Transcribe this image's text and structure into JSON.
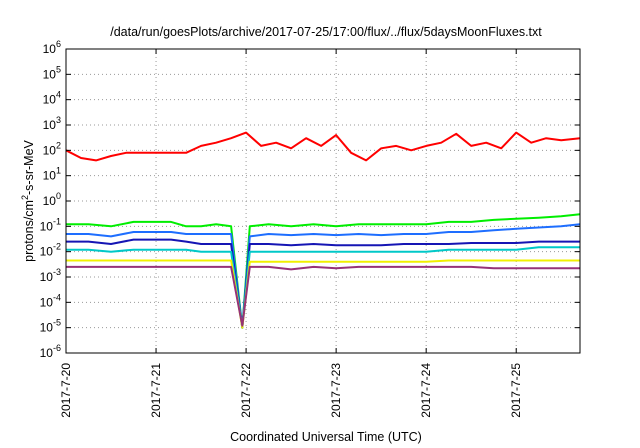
{
  "chart_data": {
    "type": "line",
    "title": "/data/run/goesPlots/archive/2017-07-25/17:00/flux/../flux/5daysMoonFluxes.txt",
    "xlabel": "Coordinated Universal Time (UTC)",
    "ylabel": {
      "base": "protons/cm",
      "sup": "2",
      "rest": "-s-sr-MeV"
    },
    "y_scale": "log",
    "ylim": [
      1e-06,
      1000000.0
    ],
    "y_ticks": [
      {
        "value": 1000000.0,
        "base": "10",
        "exp": "6"
      },
      {
        "value": 100000.0,
        "base": "10",
        "exp": "5"
      },
      {
        "value": 10000.0,
        "base": "10",
        "exp": "4"
      },
      {
        "value": 1000.0,
        "base": "10",
        "exp": "3"
      },
      {
        "value": 100.0,
        "base": "10",
        "exp": "2"
      },
      {
        "value": 10.0,
        "base": "10",
        "exp": "1"
      },
      {
        "value": 1.0,
        "base": "10",
        "exp": "0"
      },
      {
        "value": 0.1,
        "base": "10",
        "exp": "-1"
      },
      {
        "value": 0.01,
        "base": "10",
        "exp": "-2"
      },
      {
        "value": 0.001,
        "base": "10",
        "exp": "-3"
      },
      {
        "value": 0.0001,
        "base": "10",
        "exp": "-4"
      },
      {
        "value": 1e-05,
        "base": "10",
        "exp": "-5"
      },
      {
        "value": 1e-06,
        "base": "10",
        "exp": "-6"
      }
    ],
    "xlim": [
      "2017-07-20",
      "2017-07-25T17:00"
    ],
    "x_ticks": [
      "2017-7-20",
      "2017-7-21",
      "2017-7-22",
      "2017-7-23",
      "2017-7-24",
      "2017-7-25"
    ],
    "grid": "dotted",
    "series": [
      {
        "color": "#ff0000",
        "x": [
          "2017-07-20T00:00",
          "2017-07-20T04:00",
          "2017-07-20T08:00",
          "2017-07-20T12:00",
          "2017-07-20T16:00",
          "2017-07-21T00:00",
          "2017-07-21T04:00",
          "2017-07-21T08:00",
          "2017-07-21T12:00",
          "2017-07-21T16:00",
          "2017-07-21T20:00",
          "2017-07-22T00:00",
          "2017-07-22T04:00",
          "2017-07-22T08:00",
          "2017-07-22T12:00",
          "2017-07-22T16:00",
          "2017-07-22T20:00",
          "2017-07-23T00:00",
          "2017-07-23T04:00",
          "2017-07-23T08:00",
          "2017-07-23T12:00",
          "2017-07-23T16:00",
          "2017-07-23T20:00",
          "2017-07-24T00:00",
          "2017-07-24T04:00",
          "2017-07-24T08:00",
          "2017-07-24T12:00",
          "2017-07-24T16:00",
          "2017-07-24T20:00",
          "2017-07-25T00:00",
          "2017-07-25T04:00",
          "2017-07-25T08:00",
          "2017-07-25T12:00",
          "2017-07-25T17:00"
        ],
        "y": [
          100,
          50,
          40,
          60,
          80,
          80,
          80,
          80,
          150,
          200,
          300,
          500,
          150,
          200,
          120,
          300,
          150,
          400,
          80,
          40,
          120,
          150,
          100,
          150,
          200,
          450,
          150,
          200,
          120,
          500,
          200,
          300,
          250,
          300
        ]
      },
      {
        "color": "#00ee00",
        "x": [
          "2017-07-20T00:00",
          "2017-07-20T06:00",
          "2017-07-20T12:00",
          "2017-07-20T18:00",
          "2017-07-21T00:00",
          "2017-07-21T04:00",
          "2017-07-21T08:00",
          "2017-07-21T12:00",
          "2017-07-21T16:00",
          "2017-07-21T20:00",
          "2017-07-21T23:00",
          "2017-07-22T01:00",
          "2017-07-22T06:00",
          "2017-07-22T12:00",
          "2017-07-22T18:00",
          "2017-07-23T00:00",
          "2017-07-23T06:00",
          "2017-07-23T12:00",
          "2017-07-23T18:00",
          "2017-07-24T00:00",
          "2017-07-24T06:00",
          "2017-07-24T12:00",
          "2017-07-24T18:00",
          "2017-07-25T00:00",
          "2017-07-25T06:00",
          "2017-07-25T12:00",
          "2017-07-25T17:00"
        ],
        "y": [
          0.12,
          0.12,
          0.1,
          0.15,
          0.15,
          0.15,
          0.1,
          0.1,
          0.12,
          0.1,
          1e-05,
          0.1,
          0.12,
          0.1,
          0.12,
          0.1,
          0.12,
          0.12,
          0.12,
          0.12,
          0.15,
          0.15,
          0.18,
          0.2,
          0.22,
          0.25,
          0.3
        ]
      },
      {
        "color": "#1e6eff",
        "x": [
          "2017-07-20T00:00",
          "2017-07-20T06:00",
          "2017-07-20T12:00",
          "2017-07-20T18:00",
          "2017-07-21T00:00",
          "2017-07-21T04:00",
          "2017-07-21T08:00",
          "2017-07-21T12:00",
          "2017-07-21T16:00",
          "2017-07-21T20:00",
          "2017-07-21T23:00",
          "2017-07-22T01:00",
          "2017-07-22T06:00",
          "2017-07-22T12:00",
          "2017-07-22T18:00",
          "2017-07-23T00:00",
          "2017-07-23T06:00",
          "2017-07-23T12:00",
          "2017-07-23T18:00",
          "2017-07-24T00:00",
          "2017-07-24T06:00",
          "2017-07-24T12:00",
          "2017-07-24T18:00",
          "2017-07-25T00:00",
          "2017-07-25T06:00",
          "2017-07-25T12:00",
          "2017-07-25T17:00"
        ],
        "y": [
          0.05,
          0.05,
          0.04,
          0.06,
          0.06,
          0.06,
          0.05,
          0.05,
          0.05,
          0.05,
          1e-05,
          0.04,
          0.05,
          0.045,
          0.05,
          0.045,
          0.05,
          0.045,
          0.05,
          0.05,
          0.06,
          0.06,
          0.07,
          0.08,
          0.09,
          0.1,
          0.12
        ]
      },
      {
        "color": "#1515b4",
        "x": [
          "2017-07-20T00:00",
          "2017-07-20T06:00",
          "2017-07-20T12:00",
          "2017-07-20T18:00",
          "2017-07-21T00:00",
          "2017-07-21T04:00",
          "2017-07-21T08:00",
          "2017-07-21T12:00",
          "2017-07-21T16:00",
          "2017-07-21T20:00",
          "2017-07-21T23:00",
          "2017-07-22T01:00",
          "2017-07-22T06:00",
          "2017-07-22T12:00",
          "2017-07-22T18:00",
          "2017-07-23T00:00",
          "2017-07-23T06:00",
          "2017-07-23T12:00",
          "2017-07-23T18:00",
          "2017-07-24T00:00",
          "2017-07-24T06:00",
          "2017-07-24T12:00",
          "2017-07-24T18:00",
          "2017-07-25T00:00",
          "2017-07-25T06:00",
          "2017-07-25T12:00",
          "2017-07-25T17:00"
        ],
        "y": [
          0.025,
          0.025,
          0.02,
          0.03,
          0.03,
          0.03,
          0.025,
          0.02,
          0.02,
          0.02,
          1e-05,
          0.02,
          0.02,
          0.018,
          0.02,
          0.018,
          0.018,
          0.018,
          0.02,
          0.02,
          0.02,
          0.022,
          0.022,
          0.022,
          0.025,
          0.025,
          0.025
        ]
      },
      {
        "color": "#00c8c8",
        "x": [
          "2017-07-20T00:00",
          "2017-07-20T06:00",
          "2017-07-20T12:00",
          "2017-07-20T18:00",
          "2017-07-21T00:00",
          "2017-07-21T04:00",
          "2017-07-21T08:00",
          "2017-07-21T12:00",
          "2017-07-21T16:00",
          "2017-07-21T20:00",
          "2017-07-21T23:00",
          "2017-07-22T01:00",
          "2017-07-22T06:00",
          "2017-07-22T12:00",
          "2017-07-22T18:00",
          "2017-07-23T00:00",
          "2017-07-23T06:00",
          "2017-07-23T12:00",
          "2017-07-23T18:00",
          "2017-07-24T00:00",
          "2017-07-24T06:00",
          "2017-07-24T12:00",
          "2017-07-24T18:00",
          "2017-07-25T00:00",
          "2017-07-25T06:00",
          "2017-07-25T12:00",
          "2017-07-25T17:00"
        ],
        "y": [
          0.012,
          0.012,
          0.01,
          0.012,
          0.012,
          0.012,
          0.012,
          0.01,
          0.01,
          0.01,
          1e-05,
          0.01,
          0.01,
          0.01,
          0.01,
          0.01,
          0.01,
          0.01,
          0.01,
          0.01,
          0.012,
          0.012,
          0.012,
          0.012,
          0.015,
          0.015,
          0.015
        ]
      },
      {
        "color": "#f0f000",
        "x": [
          "2017-07-20T00:00",
          "2017-07-20T06:00",
          "2017-07-20T12:00",
          "2017-07-20T18:00",
          "2017-07-21T00:00",
          "2017-07-21T04:00",
          "2017-07-21T08:00",
          "2017-07-21T12:00",
          "2017-07-21T16:00",
          "2017-07-21T20:00",
          "2017-07-21T23:00",
          "2017-07-22T01:00",
          "2017-07-22T06:00",
          "2017-07-22T12:00",
          "2017-07-22T18:00",
          "2017-07-23T00:00",
          "2017-07-23T06:00",
          "2017-07-23T12:00",
          "2017-07-23T18:00",
          "2017-07-24T00:00",
          "2017-07-24T06:00",
          "2017-07-24T12:00",
          "2017-07-24T18:00",
          "2017-07-25T00:00",
          "2017-07-25T06:00",
          "2017-07-25T12:00",
          "2017-07-25T17:00"
        ],
        "y": [
          0.0045,
          0.0045,
          0.0045,
          0.0045,
          0.0045,
          0.0045,
          0.0045,
          0.0045,
          0.0045,
          0.0045,
          1e-05,
          0.004,
          0.004,
          0.004,
          0.004,
          0.004,
          0.004,
          0.004,
          0.004,
          0.004,
          0.0045,
          0.0045,
          0.0045,
          0.0045,
          0.0045,
          0.0045,
          0.0045
        ]
      },
      {
        "color": "#963278",
        "x": [
          "2017-07-20T00:00",
          "2017-07-20T06:00",
          "2017-07-20T12:00",
          "2017-07-20T18:00",
          "2017-07-21T00:00",
          "2017-07-21T04:00",
          "2017-07-21T08:00",
          "2017-07-21T12:00",
          "2017-07-21T16:00",
          "2017-07-21T20:00",
          "2017-07-21T23:00",
          "2017-07-22T01:00",
          "2017-07-22T06:00",
          "2017-07-22T12:00",
          "2017-07-22T18:00",
          "2017-07-23T00:00",
          "2017-07-23T06:00",
          "2017-07-23T12:00",
          "2017-07-23T18:00",
          "2017-07-24T00:00",
          "2017-07-24T06:00",
          "2017-07-24T12:00",
          "2017-07-24T18:00",
          "2017-07-25T00:00",
          "2017-07-25T06:00",
          "2017-07-25T12:00",
          "2017-07-25T17:00"
        ],
        "y": [
          0.0025,
          0.0025,
          0.0025,
          0.0025,
          0.0025,
          0.0025,
          0.0025,
          0.0025,
          0.0025,
          0.0025,
          1.2e-05,
          0.0025,
          0.0025,
          0.002,
          0.0025,
          0.0022,
          0.0025,
          0.0025,
          0.0025,
          0.0025,
          0.0025,
          0.0025,
          0.0022,
          0.0022,
          0.0022,
          0.0022,
          0.0022
        ]
      }
    ]
  }
}
